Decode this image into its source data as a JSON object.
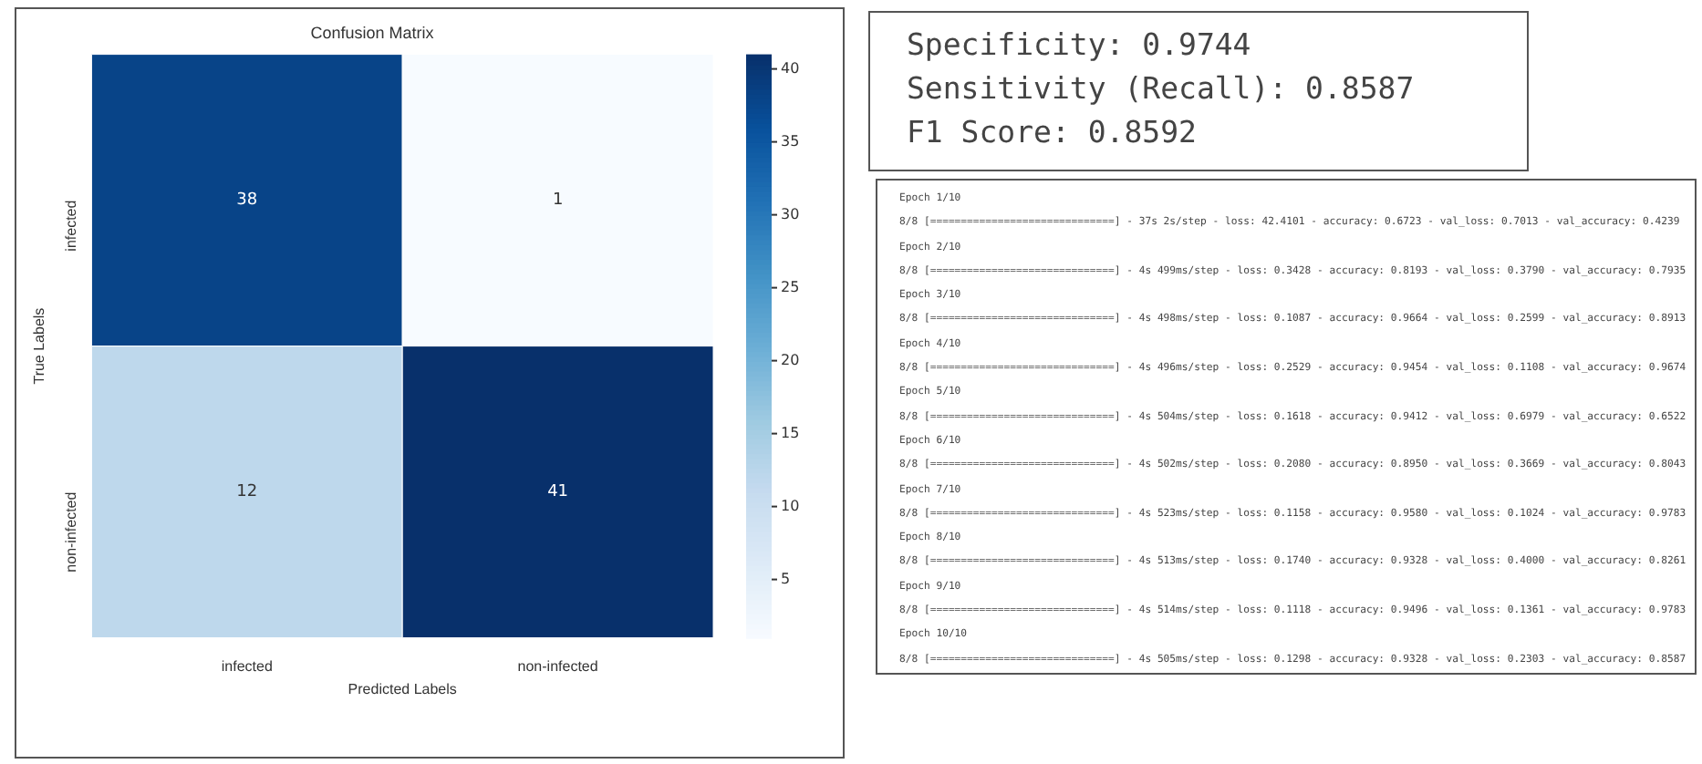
{
  "chart_data": [
    {
      "type": "heatmap",
      "title": "Confusion Matrix",
      "xlabel": "Predicted Labels",
      "ylabel": "True Labels",
      "categories": [
        "infected",
        "non-infected"
      ],
      "y_categories": [
        "infected",
        "non-infected"
      ],
      "cells": [
        [
          38,
          1
        ],
        [
          12,
          41
        ]
      ],
      "data_labels": true,
      "clim": [
        1,
        41
      ],
      "cticks": [
        5,
        10,
        15,
        20,
        25,
        30,
        35,
        40
      ]
    },
    {
      "type": "other",
      "annotations": [
        "Specificity: 0.9744",
        "Sensitivity (Recall): 0.8587",
        "F1 Score: 0.8592"
      ]
    },
    {
      "type": "other",
      "annotations": [
        "Epoch 1/10",
        "8/8 [==============================] - 37s 2s/step - loss: 42.4101 - accuracy: 0.6723 - val_loss: 0.7013 - val_accuracy: 0.4239",
        "Epoch 2/10",
        "8/8 [==============================] - 4s 499ms/step - loss: 0.3428 - accuracy: 0.8193 - val_loss: 0.3790 - val_accuracy: 0.7935",
        "Epoch 3/10",
        "8/8 [==============================] - 4s 498ms/step - loss: 0.1087 - accuracy: 0.9664 - val_loss: 0.2599 - val_accuracy: 0.8913",
        "Epoch 4/10",
        "8/8 [==============================] - 4s 496ms/step - loss: 0.2529 - accuracy: 0.9454 - val_loss: 0.1108 - val_accuracy: 0.9674",
        "Epoch 5/10",
        "8/8 [==============================] - 4s 504ms/step - loss: 0.1618 - accuracy: 0.9412 - val_loss: 0.6979 - val_accuracy: 0.6522",
        "Epoch 6/10",
        "8/8 [==============================] - 4s 502ms/step - loss: 0.2080 - accuracy: 0.8950 - val_loss: 0.3669 - val_accuracy: 0.8043",
        "Epoch 7/10",
        "8/8 [==============================] - 4s 523ms/step - loss: 0.1158 - accuracy: 0.9580 - val_loss: 0.1024 - val_accuracy: 0.9783",
        "Epoch 8/10",
        "8/8 [==============================] - 4s 513ms/step - loss: 0.1740 - accuracy: 0.9328 - val_loss: 0.4000 - val_accuracy: 0.8261",
        "Epoch 9/10",
        "8/8 [==============================] - 4s 514ms/step - loss: 0.1118 - accuracy: 0.9496 - val_loss: 0.1361 - val_accuracy: 0.9783",
        "Epoch 10/10",
        "8/8 [==============================] - 4s 505ms/step - loss: 0.1298 - accuracy: 0.9328 - val_loss: 0.2303 - val_accuracy: 0.8587"
      ]
    }
  ]
}
